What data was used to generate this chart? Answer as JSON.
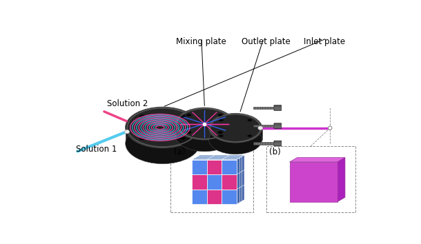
{
  "bg_color": "#ffffff",
  "inlet_label": "Inlet plate",
  "mixing_label": "Mixing plate",
  "outlet_label": "Outlet plate",
  "sol1_label": "Solution 1",
  "sol2_label": "Solution 2",
  "label_a": "(a)",
  "label_b": "(b)",
  "disk_face": "#252525",
  "disk_side": "#111111",
  "disk_edge": "#4a4a4a",
  "disk_shine": "#555555",
  "sol1_color": "#55ccee",
  "sol2_color": "#ee4488",
  "mixed_color": "#cc33cc",
  "blue_cube": "#5588ee",
  "pink_cube": "#dd3388",
  "purple_cube_front": "#cc44cc",
  "purple_cube_top": "#dd66dd",
  "purple_cube_right": "#aa22bb",
  "bolt_shaft": "#707070",
  "bolt_head": "#555555",
  "connector_white": "#f0f0f0",
  "label_line_color": "#333333",
  "dashed_box_color": "#888888",
  "coil_pink": "#ff44aa",
  "coil_cyan": "#33bbdd",
  "ray_pink": "#ff33aa",
  "ray_blue": "#3366ff"
}
